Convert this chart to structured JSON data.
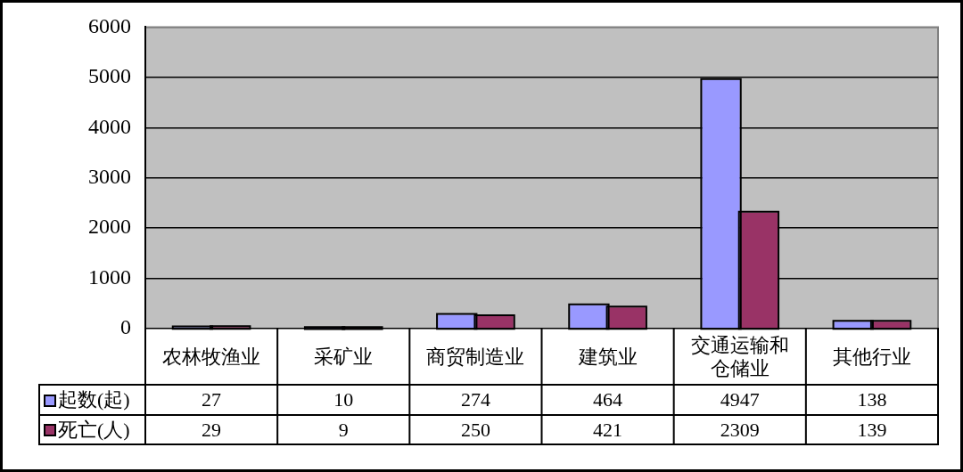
{
  "chart_data": {
    "type": "bar",
    "categories": [
      "农林牧渔业",
      "采矿业",
      "商贸制造业",
      "建筑业",
      "交通运输和仓储业",
      "其他行业"
    ],
    "series": [
      {
        "name": "起数(起)",
        "color": "#9999ff",
        "values": [
          27,
          10,
          274,
          464,
          4947,
          138
        ]
      },
      {
        "name": "死亡(人)",
        "color": "#993366",
        "values": [
          29,
          9,
          250,
          421,
          2309,
          139
        ]
      }
    ],
    "ylim": [
      0,
      6000
    ],
    "yticks": [
      0,
      1000,
      2000,
      3000,
      4000,
      5000,
      6000
    ],
    "grid": "y",
    "legend": "bottom",
    "data_labels": true
  }
}
